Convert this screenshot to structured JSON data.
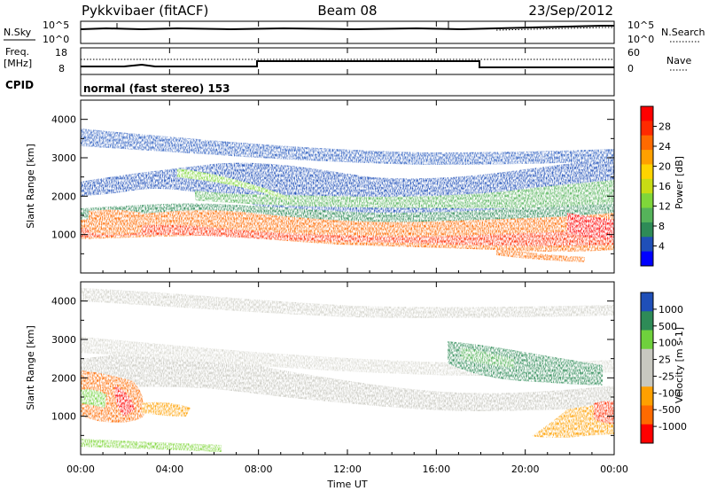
{
  "header": {
    "title_left": "Pykkvibaer (fitACF)",
    "title_center": "Beam 08",
    "title_right": "23/Sep/2012"
  },
  "noise_panel": {
    "left_label": "N.Sky",
    "right_label": "N.Search",
    "left_ticks": [
      "10^5",
      "10^0"
    ],
    "right_ticks": [
      "10^5",
      "10^0"
    ]
  },
  "freq_panel": {
    "left_label_line1": "Freq.",
    "left_label_line2": "[MHz]",
    "left_ticks": [
      "18",
      "8"
    ],
    "right_label": "Nave",
    "right_ticks": [
      "60",
      "0"
    ]
  },
  "cpid": {
    "label": "CPID",
    "mode_text": "normal (fast stereo) 153"
  },
  "colors": {
    "power": [
      "#0000ff",
      "#1f4fb8",
      "#2e8b57",
      "#55b35a",
      "#7fd63a",
      "#c8dc14",
      "#ffd400",
      "#ffa000",
      "#ff6a00",
      "#ff2a00",
      "#ff0000"
    ],
    "velocity": [
      "#ff0000",
      "#ff6a00",
      "#ffa000",
      "#c8c8c0",
      "#c8c8c0",
      "#6fd13c",
      "#2e8b57",
      "#1f4fb8"
    ]
  },
  "chart_data": [
    {
      "type": "heatmap",
      "name": "power-panel",
      "ylabel": "Slant Range [km]",
      "yticks": [
        "1000",
        "2000",
        "3000",
        "4000"
      ],
      "ylim": [
        0,
        4500
      ],
      "x_ticks": [
        "00:00",
        "04:00",
        "08:00",
        "12:00",
        "16:00",
        "20:00",
        "00:00"
      ],
      "colorbar_label": "Power [dB]",
      "colorbar_ticks": [
        "4",
        "8",
        "12",
        "16",
        "20",
        "24",
        "28"
      ],
      "bands": [
        {
          "x": [
            0,
            1,
            2,
            3,
            4,
            5,
            6,
            7,
            8,
            9,
            10,
            11,
            12,
            13,
            14,
            15,
            16,
            17,
            18,
            19,
            20,
            21,
            22,
            23,
            24
          ],
          "y": [
            1150,
            1200,
            1250,
            1250,
            1300,
            1400,
            1550,
            1700,
            1550,
            1400,
            1300,
            1250,
            1200,
            1200,
            1200,
            1200,
            1200,
            1250,
            1250,
            1200,
            1150,
            1100,
            1100,
            1100,
            1100
          ]
        },
        {
          "x": [
            0,
            1,
            2,
            3,
            4,
            5,
            6,
            7,
            8,
            9,
            10,
            11,
            12,
            13,
            14,
            15,
            16,
            17,
            18,
            19,
            20,
            21,
            22,
            23,
            24
          ],
          "y": [
            1500,
            1700,
            1900,
            1900,
            2000,
            2300,
            2450,
            2500,
            2300,
            2200,
            2150,
            2100,
            2050,
            2000,
            2000,
            2000,
            2050,
            2150,
            2100,
            2000,
            2000,
            2050,
            2150,
            2250,
            2350
          ]
        }
      ]
    },
    {
      "type": "heatmap",
      "name": "velocity-panel",
      "ylabel": "Slant Range [km]",
      "yticks": [
        "1000",
        "2000",
        "3000",
        "4000"
      ],
      "ylim": [
        0,
        4500
      ],
      "x_ticks": [
        "00:00",
        "04:00",
        "08:00",
        "12:00",
        "16:00",
        "20:00",
        "00:00"
      ],
      "xlabel": "Time UT",
      "colorbar_label": "Velocity [m s-1]",
      "colorbar_ticks": [
        "1000",
        "500",
        "100",
        "25",
        "-25",
        "-100",
        "-500",
        "-1000"
      ]
    }
  ]
}
